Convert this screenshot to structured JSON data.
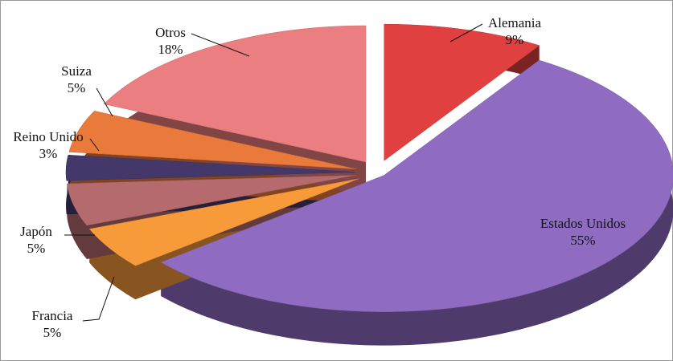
{
  "chart_data": {
    "type": "pie",
    "categories": [
      "Alemania",
      "Estados Unidos",
      "Francia",
      "Japón",
      "Reino Unido",
      "Suiza",
      "Otros"
    ],
    "values": [
      9,
      55,
      5,
      5,
      3,
      5,
      18
    ],
    "value_labels": [
      "9%",
      "55%",
      "5%",
      "5%",
      "3%",
      "5%",
      "18%"
    ],
    "colors": [
      "#e04040",
      "#8f6cc2",
      "#f79a3a",
      "#b56b6e",
      "#433869",
      "#ea7a3c",
      "#eb7e80"
    ]
  }
}
